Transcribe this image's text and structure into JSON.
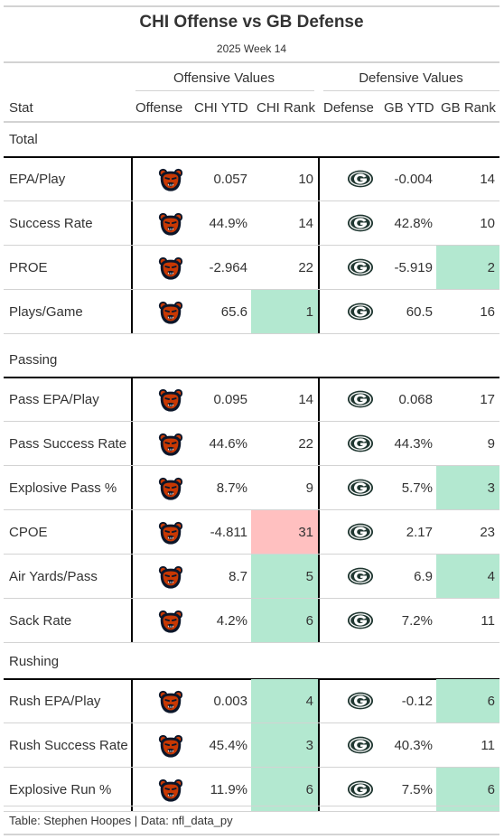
{
  "title": "CHI Offense vs GB Defense",
  "subtitle": "2025 Week 14",
  "spanners": {
    "offense": "Offensive Values",
    "defense": "Defensive Values"
  },
  "columns": {
    "stat": "Stat",
    "offense": "Offense",
    "off_ytd": "CHI YTD",
    "off_rank": "CHI Rank",
    "defense": "Defense",
    "def_ytd": "GB YTD",
    "def_rank": "GB Rank"
  },
  "colors": {
    "good_rank": "#b3e8d0",
    "bad_rank": "#ffc0c0",
    "bears_navy": "#0b162a",
    "bears_orange": "#c83803",
    "packers_green": "#203731",
    "packers_gold": "#ffb612"
  },
  "icons": {
    "offense": "bears-logo-icon",
    "defense": "packers-logo-icon"
  },
  "groups": [
    {
      "name": "Total",
      "rows": [
        {
          "stat": "EPA/Play",
          "off_ytd": "0.057",
          "off_rank": "10",
          "off_rank_hl": "",
          "def_ytd": "-0.004",
          "def_rank": "14",
          "def_rank_hl": ""
        },
        {
          "stat": "Success Rate",
          "off_ytd": "44.9%",
          "off_rank": "14",
          "off_rank_hl": "",
          "def_ytd": "42.8%",
          "def_rank": "10",
          "def_rank_hl": ""
        },
        {
          "stat": "PROE",
          "off_ytd": "-2.964",
          "off_rank": "22",
          "off_rank_hl": "",
          "def_ytd": "-5.919",
          "def_rank": "2",
          "def_rank_hl": "good"
        },
        {
          "stat": "Plays/Game",
          "off_ytd": "65.6",
          "off_rank": "1",
          "off_rank_hl": "good",
          "def_ytd": "60.5",
          "def_rank": "16",
          "def_rank_hl": ""
        }
      ]
    },
    {
      "name": "Passing",
      "rows": [
        {
          "stat": "Pass EPA/Play",
          "off_ytd": "0.095",
          "off_rank": "14",
          "off_rank_hl": "",
          "def_ytd": "0.068",
          "def_rank": "17",
          "def_rank_hl": ""
        },
        {
          "stat": "Pass Success Rate",
          "off_ytd": "44.6%",
          "off_rank": "22",
          "off_rank_hl": "",
          "def_ytd": "44.3%",
          "def_rank": "9",
          "def_rank_hl": ""
        },
        {
          "stat": "Explosive Pass %",
          "off_ytd": "8.7%",
          "off_rank": "9",
          "off_rank_hl": "",
          "def_ytd": "5.7%",
          "def_rank": "3",
          "def_rank_hl": "good"
        },
        {
          "stat": "CPOE",
          "off_ytd": "-4.811",
          "off_rank": "31",
          "off_rank_hl": "bad",
          "def_ytd": "2.17",
          "def_rank": "23",
          "def_rank_hl": ""
        },
        {
          "stat": "Air Yards/Pass",
          "off_ytd": "8.7",
          "off_rank": "5",
          "off_rank_hl": "good",
          "def_ytd": "6.9",
          "def_rank": "4",
          "def_rank_hl": "good"
        },
        {
          "stat": "Sack Rate",
          "off_ytd": "4.2%",
          "off_rank": "6",
          "off_rank_hl": "good",
          "def_ytd": "7.2%",
          "def_rank": "11",
          "def_rank_hl": ""
        }
      ]
    },
    {
      "name": "Rushing",
      "rows": [
        {
          "stat": "Rush EPA/Play",
          "off_ytd": "0.003",
          "off_rank": "4",
          "off_rank_hl": "good",
          "def_ytd": "-0.12",
          "def_rank": "6",
          "def_rank_hl": "good"
        },
        {
          "stat": "Rush Success Rate",
          "off_ytd": "45.4%",
          "off_rank": "3",
          "off_rank_hl": "good",
          "def_ytd": "40.3%",
          "def_rank": "11",
          "def_rank_hl": ""
        },
        {
          "stat": "Explosive Run %",
          "off_ytd": "11.9%",
          "off_rank": "6",
          "off_rank_hl": "good",
          "def_ytd": "7.5%",
          "def_rank": "6",
          "def_rank_hl": "good"
        }
      ]
    }
  ],
  "footer": "Table: Stephen Hoopes | Data: nfl_data_py"
}
